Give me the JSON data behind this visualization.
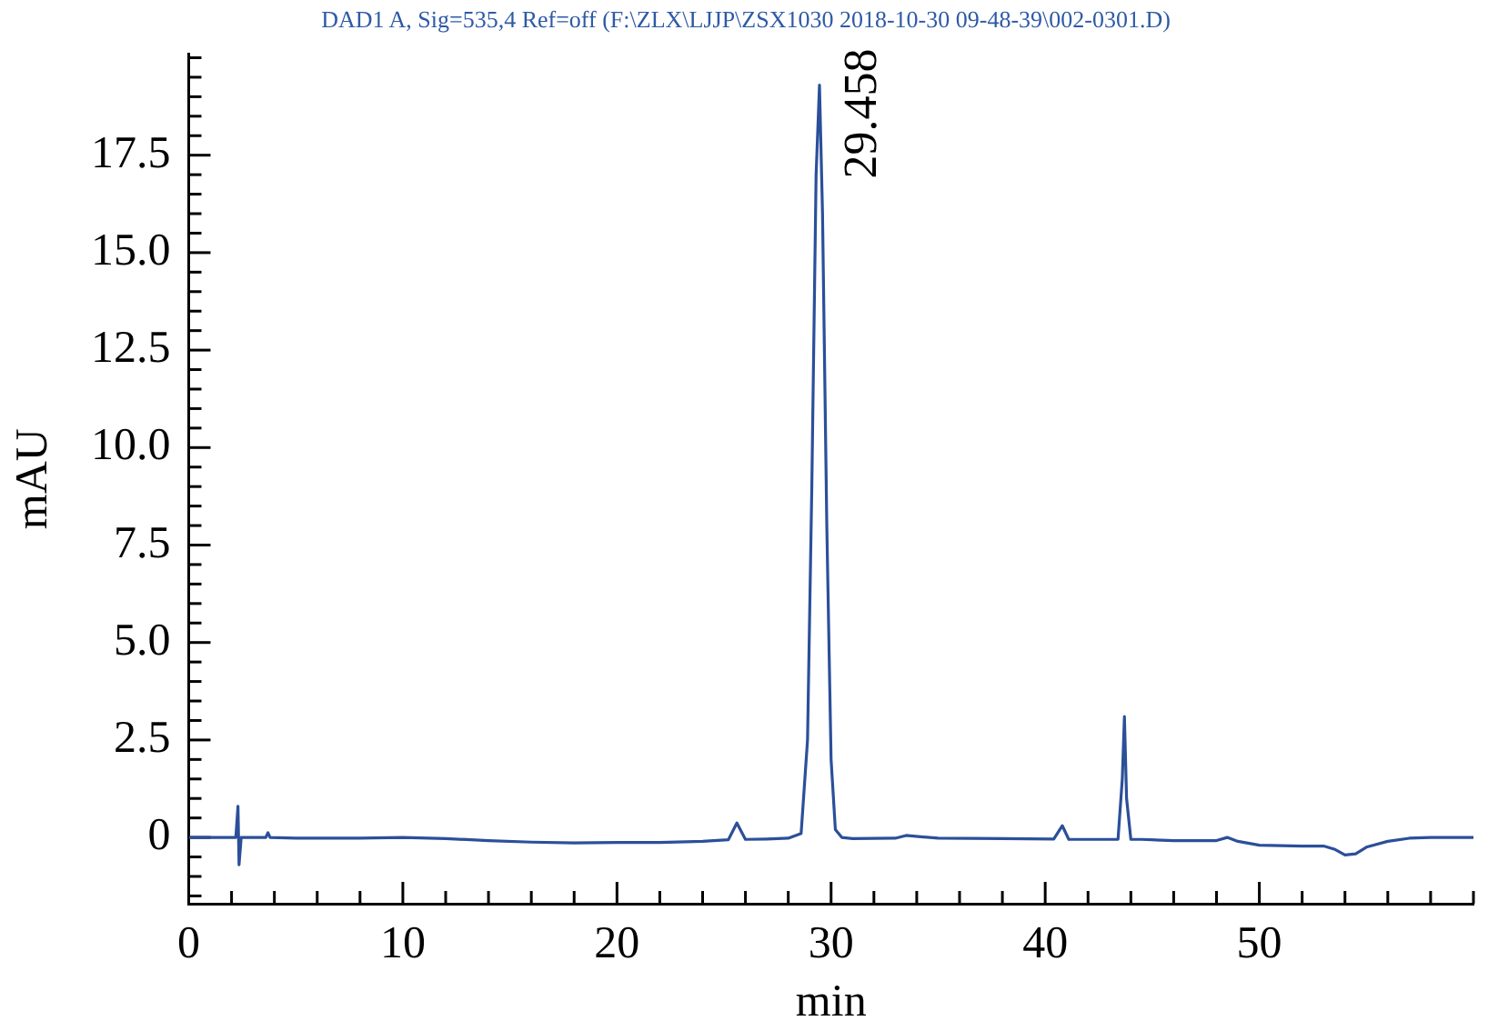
{
  "chart_data": {
    "type": "line",
    "title": "DAD1 A, Sig=535,4 Ref=off (F:\\ZLX\\LJJP\\ZSX1030 2018-10-30 09-48-39\\002-0301.D)",
    "xlabel": "min",
    "ylabel": "mAU",
    "x": [
      0,
      1,
      2,
      2.2,
      2.3,
      2.35,
      2.45,
      3,
      3.6,
      3.7,
      3.8,
      5,
      8,
      10,
      12,
      14,
      16,
      18,
      20,
      22,
      24,
      25.2,
      25.6,
      26,
      27,
      28,
      28.6,
      28.9,
      29.1,
      29.3,
      29.458,
      29.6,
      29.8,
      30,
      30.2,
      30.5,
      31,
      33,
      33.5,
      35,
      38,
      40.4,
      40.8,
      41.1,
      42,
      43.4,
      43.6,
      43.7,
      43.8,
      44,
      44.5,
      46,
      48,
      48.5,
      49,
      50,
      52,
      53,
      53.5,
      54,
      54.5,
      55,
      56,
      57,
      58,
      60
    ],
    "series": [
      {
        "color": "#2b4f9a",
        "values": [
          0,
          0,
          0,
          0,
          0.8,
          -0.7,
          0,
          0,
          0,
          0.12,
          0,
          -0.02,
          -0.02,
          0,
          -0.03,
          -0.08,
          -0.12,
          -0.14,
          -0.13,
          -0.13,
          -0.1,
          -0.06,
          0.37,
          -0.05,
          -0.04,
          -0.02,
          0.1,
          2.5,
          9,
          17,
          19.3,
          16,
          8,
          2,
          0.2,
          0,
          -0.03,
          -0.02,
          0.05,
          -0.02,
          -0.03,
          -0.04,
          0.3,
          -0.05,
          -0.05,
          -0.05,
          1.5,
          3.1,
          1.0,
          -0.05,
          -0.05,
          -0.08,
          -0.08,
          0,
          -0.1,
          -0.2,
          -0.22,
          -0.22,
          -0.3,
          -0.45,
          -0.42,
          -0.25,
          -0.1,
          -0.02,
          0,
          0
        ]
      }
    ],
    "xlim": [
      0,
      60
    ],
    "xticks": [
      0,
      {
        "value": 2,
        "label": null
      },
      {
        "value": 4,
        "label": null
      },
      {
        "value": 6,
        "label": null
      },
      {
        "value": 8,
        "label": null
      },
      10,
      {
        "value": 12,
        "label": null
      },
      {
        "value": 14,
        "label": null
      },
      {
        "value": 16,
        "label": null
      },
      {
        "value": 18,
        "label": null
      },
      20,
      {
        "value": 22,
        "label": null
      },
      {
        "value": 24,
        "label": null
      },
      {
        "value": 26,
        "label": null
      },
      {
        "value": 28,
        "label": null
      },
      30,
      {
        "value": 32,
        "label": null
      },
      {
        "value": 34,
        "label": null
      },
      {
        "value": 36,
        "label": null
      },
      {
        "value": 38,
        "label": null
      },
      40,
      {
        "value": 42,
        "label": null
      },
      {
        "value": 44,
        "label": null
      },
      {
        "value": 46,
        "label": null
      },
      {
        "value": 48,
        "label": null
      },
      50,
      {
        "value": 52,
        "label": null
      },
      {
        "value": 54,
        "label": null
      },
      {
        "value": 56,
        "label": null
      },
      {
        "value": 58,
        "label": null
      },
      {
        "value": 60,
        "label": null
      }
    ],
    "ylim": [
      -1.7,
      20.1
    ],
    "yticks": [
      {
        "value": -1.5,
        "label": null
      },
      {
        "value": -1,
        "label": null
      },
      {
        "value": -0.5,
        "label": null
      },
      0,
      {
        "value": 0.5,
        "label": null
      },
      {
        "value": 1,
        "label": null
      },
      {
        "value": 1.5,
        "label": null
      },
      {
        "value": 2,
        "label": null
      },
      2.5,
      {
        "value": 3,
        "label": null
      },
      {
        "value": 3.5,
        "label": null
      },
      {
        "value": 4,
        "label": null
      },
      {
        "value": 4.5,
        "label": null
      },
      {
        "value": 5,
        "label": "5.0"
      },
      {
        "value": 5.5,
        "label": null
      },
      {
        "value": 6,
        "label": null
      },
      {
        "value": 6.5,
        "label": null
      },
      {
        "value": 7,
        "label": null
      },
      7.5,
      {
        "value": 8,
        "label": null
      },
      {
        "value": 8.5,
        "label": null
      },
      {
        "value": 9,
        "label": null
      },
      {
        "value": 9.5,
        "label": null
      },
      {
        "value": 10,
        "label": "10.0"
      },
      {
        "value": 10.5,
        "label": null
      },
      {
        "value": 11,
        "label": null
      },
      {
        "value": 11.5,
        "label": null
      },
      {
        "value": 12,
        "label": null
      },
      12.5,
      {
        "value": 13,
        "label": null
      },
      {
        "value": 13.5,
        "label": null
      },
      {
        "value": 14,
        "label": null
      },
      {
        "value": 14.5,
        "label": null
      },
      {
        "value": 15,
        "label": "15.0"
      },
      {
        "value": 15.5,
        "label": null
      },
      {
        "value": 16,
        "label": null
      },
      {
        "value": 16.5,
        "label": null
      },
      {
        "value": 17,
        "label": null
      },
      17.5,
      {
        "value": 18,
        "label": null
      },
      {
        "value": 18.5,
        "label": null
      },
      {
        "value": 19,
        "label": null
      },
      {
        "value": 19.5,
        "label": null
      },
      {
        "value": 20,
        "label": null
      }
    ],
    "annotations": [
      {
        "text": "29.458",
        "x": 29.458,
        "y": 19.3
      }
    ],
    "marker": "none",
    "line_style": "solid",
    "grid": false,
    "legend": false
  }
}
